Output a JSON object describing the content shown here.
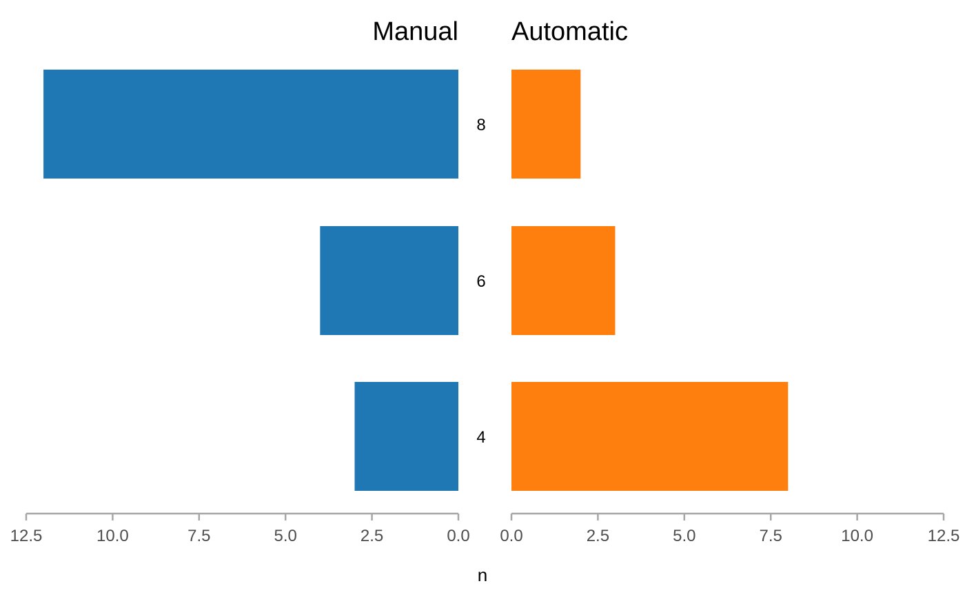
{
  "chart_data": {
    "type": "bar",
    "orientation": "horizontal-mirrored",
    "categories": [
      "8",
      "6",
      "4"
    ],
    "series": [
      {
        "name": "Manual",
        "values": [
          12,
          4,
          3
        ],
        "color": "#1f77b4",
        "direction": "left"
      },
      {
        "name": "Automatic",
        "values": [
          2,
          3,
          8
        ],
        "color": "#ff7f0e",
        "direction": "right"
      }
    ],
    "xlabel": "n",
    "xlim": [
      0,
      12.5
    ],
    "ticks": [
      0,
      2.5,
      5,
      7.5,
      10,
      12.5
    ],
    "tick_labels": [
      "0.0",
      "2.5",
      "5.0",
      "7.5",
      "10.0",
      "12.5"
    ],
    "grid": false,
    "legend": "none"
  }
}
